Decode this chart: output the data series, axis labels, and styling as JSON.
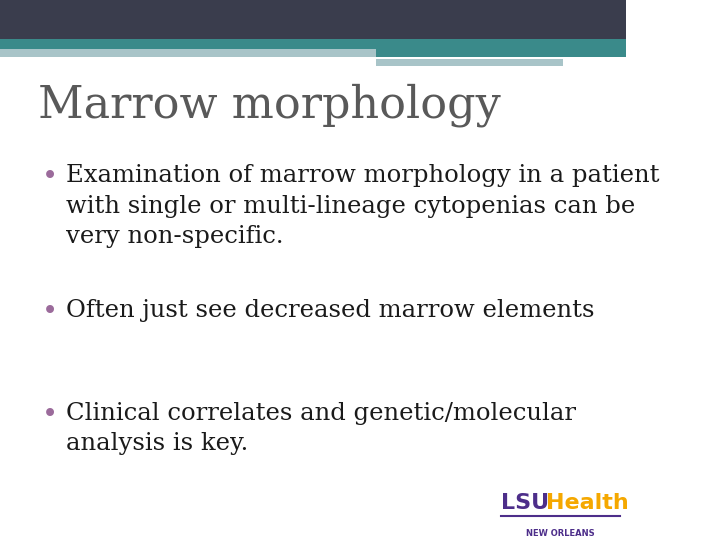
{
  "title": "Marrow morphology",
  "title_color": "#595959",
  "title_fontsize": 32,
  "bullet_color": "#9b6b9b",
  "bullet_text_color": "#1a1a1a",
  "bullet_fontsize": 17.5,
  "bullets": [
    "Examination of marrow morphology in a patient\nwith single or multi-lineage cytopenias can be\nvery non-specific.",
    "Often just see decreased marrow elements",
    "Clinical correlates and genetic/molecular\nanalysis is key."
  ],
  "bg_color": "#ffffff",
  "header_bar_color": "#3a3d4d",
  "header_bar_height": 0.072,
  "teal_bar_color": "#3a8a8a",
  "teal_bar_height": 0.018,
  "accent_bar1_color": "#a8c4c8",
  "lsu_lsu_color": "#4d2e8a",
  "lsu_health_color": "#f5a800",
  "lsu_text": "LSU",
  "health_text": "Health",
  "new_orleans_text": "NEW ORLEANS"
}
